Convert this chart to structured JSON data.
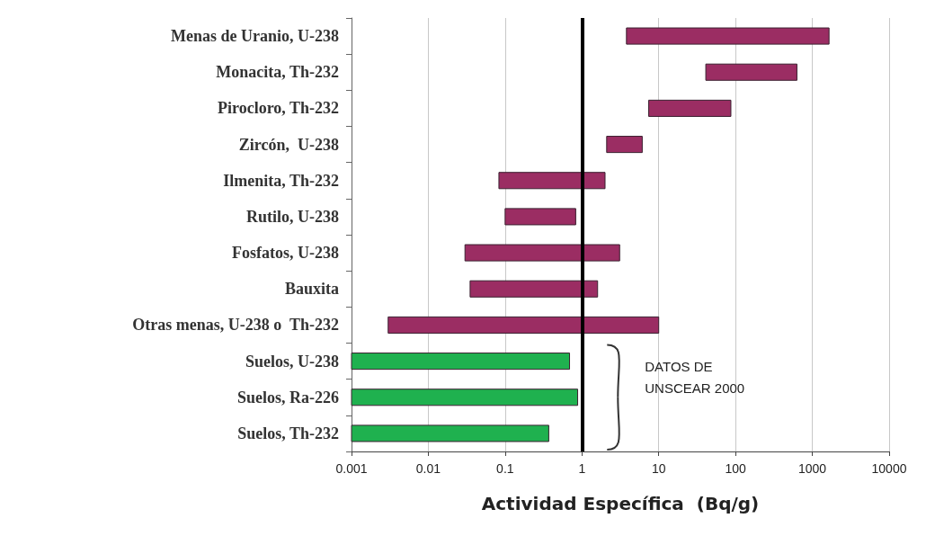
{
  "chart_data": {
    "type": "bar",
    "orientation": "horizontal",
    "xlabel": "Actividad Específica  (Bq/g)",
    "categories": [
      "Menas de Uranio, U-238",
      "Monacita, Th-232",
      "Pirocloro, Th-232",
      "Zircón,  U-238",
      "Ilmenita, Th-232",
      "Rutilo, U-238",
      "Fosfatos, U-238",
      "Bauxita",
      "Otras menas, U-238 o  Th-232",
      "Suelos, U-238",
      "Suelos, Ra-226",
      "Suelos, Th-232"
    ],
    "base": [
      3.8,
      41,
      7.4,
      2.1,
      0.083,
      0.1,
      0.03,
      0.035,
      0.003,
      0.001,
      0.001,
      0.001
    ],
    "values": [
      1646,
      589,
      79.6,
      4,
      1.917,
      0.73,
      3.07,
      1.565,
      9.997,
      0.689,
      0.879,
      0.369
    ],
    "colors": [
      "#9b2d63",
      "#9b2d63",
      "#9b2d63",
      "#9b2d63",
      "#9b2d63",
      "#9b2d63",
      "#9b2d63",
      "#9b2d63",
      "#9b2d63",
      "#1fb14f",
      "#1fb14f",
      "#1fb14f"
    ],
    "log": "x",
    "xlim": [
      0.001,
      10000
    ],
    "xticks": [
      0.001,
      0.01,
      0.1,
      1,
      10,
      100,
      1000,
      10000
    ],
    "grid": "x",
    "ref_lines": [
      {
        "axis": "x",
        "value": 1,
        "color": "#000000"
      }
    ],
    "annotations": [
      "DATOS DE UNSCEAR 2000"
    ]
  }
}
